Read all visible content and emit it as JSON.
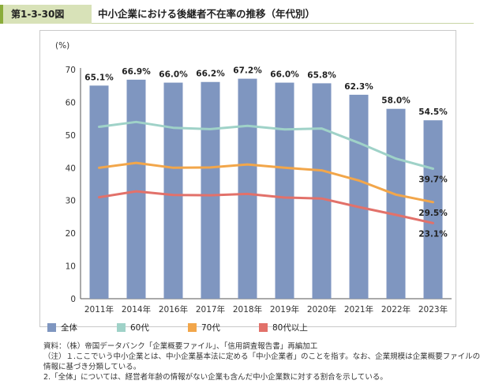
{
  "header": {
    "figure_number": "第1-3-30図",
    "figure_title": "中小企業における後継者不在率の推移（年代別）"
  },
  "chart_data": {
    "type": "bar",
    "y_unit_label": "(%)",
    "ylim": [
      0,
      70
    ],
    "yticks": [
      0,
      10,
      20,
      30,
      40,
      50,
      60,
      70
    ],
    "categories": [
      "2011年",
      "2014年",
      "2016年",
      "2017年",
      "2018年",
      "2019年",
      "2020年",
      "2021年",
      "2022年",
      "2023年"
    ],
    "bar_series": {
      "name": "全体",
      "color": "#7f96c0",
      "values": [
        65.1,
        66.9,
        66.0,
        66.2,
        67.2,
        66.0,
        65.8,
        62.3,
        58.0,
        54.5
      ],
      "labels": [
        "65.1%",
        "66.9%",
        "66.0%",
        "66.2%",
        "67.2%",
        "66.0%",
        "65.8%",
        "62.3%",
        "58.0%",
        "54.5%"
      ]
    },
    "line_series": [
      {
        "name": "60代",
        "color": "#9fd2c8",
        "values": [
          52.5,
          54.0,
          52.2,
          51.8,
          52.8,
          51.7,
          52.0,
          47.6,
          42.8,
          39.7
        ],
        "end_label": "39.7%"
      },
      {
        "name": "70代",
        "color": "#f2a64a",
        "values": [
          40.0,
          41.5,
          40.0,
          40.1,
          41.0,
          40.0,
          39.2,
          36.1,
          31.8,
          29.5
        ],
        "end_label": "29.5%"
      },
      {
        "name": "80代以上",
        "color": "#e2716a",
        "values": [
          31.0,
          32.8,
          31.7,
          31.6,
          32.0,
          30.9,
          30.6,
          28.0,
          25.6,
          23.1
        ],
        "end_label": "23.1%"
      }
    ]
  },
  "notes": {
    "source": "資料：（株）帝国データバンク「企業概要ファイル」、「信用調査報告書」再編加工",
    "note1_line1": "（注）１.ここでいう中小企業とは、中小企業基本法に定める「中小企業者」のことを指す。なお、企業規模は企業概要ファイルの",
    "note1_line2": "情報に基づき分類している。",
    "note2": "2.「全体」については、経営者年齢の情報がない企業も含んだ中小企業数に対する割合を示している。"
  }
}
